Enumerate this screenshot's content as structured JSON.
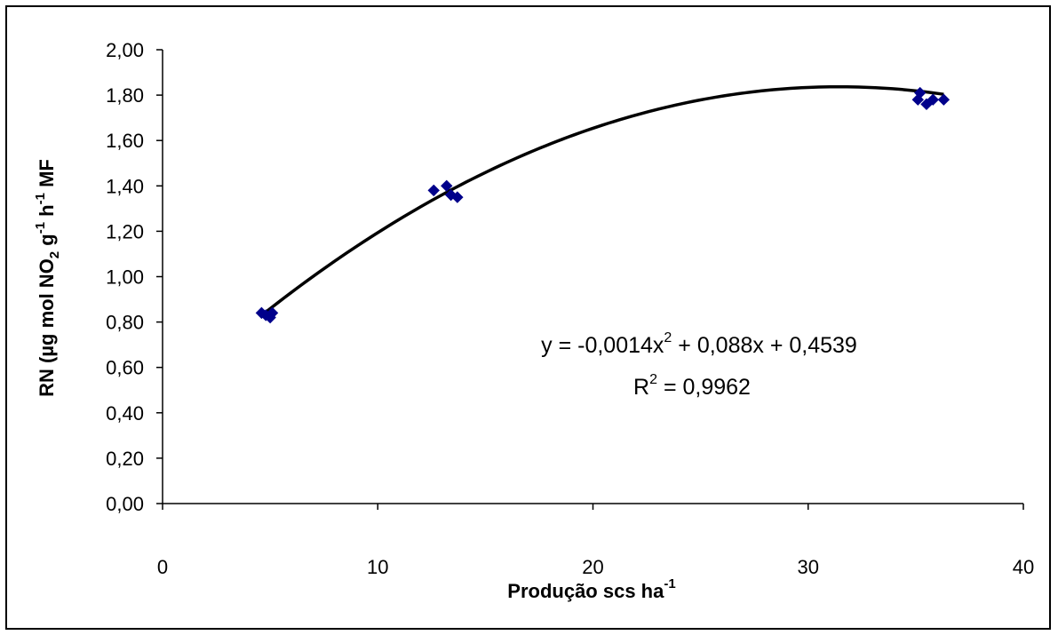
{
  "chart_data": {
    "type": "scatter",
    "title": "",
    "xlabel": "Produção scs ha",
    "xlabel_sup": "-1",
    "ylabel_parts": [
      {
        "t": "RN (µg mol NO",
        "s": "n"
      },
      {
        "t": "2",
        "s": "sub"
      },
      {
        "t": " g",
        "s": "n"
      },
      {
        "t": "-1",
        "s": "sup"
      },
      {
        "t": " h",
        "s": "n"
      },
      {
        "t": "-1",
        "s": "sup"
      },
      {
        "t": " MF",
        "s": "n"
      }
    ],
    "xlim": [
      0,
      40
    ],
    "ylim": [
      0,
      2
    ],
    "x_ticks": [
      "0",
      "10",
      "20",
      "30",
      "40"
    ],
    "y_ticks": [
      "0,00",
      "0,20",
      "0,40",
      "0,60",
      "0,80",
      "1,00",
      "1,20",
      "1,40",
      "1,60",
      "1,80",
      "2,00"
    ],
    "grid": false,
    "legend": "none",
    "marker_color": "#00008B",
    "line_color": "#000000",
    "series": [
      {
        "marker": "diamond",
        "points": [
          [
            4.6,
            0.84
          ],
          [
            4.8,
            0.83
          ],
          [
            5.0,
            0.82
          ],
          [
            5.1,
            0.84
          ],
          [
            12.6,
            1.38
          ],
          [
            13.2,
            1.4
          ],
          [
            13.4,
            1.36
          ],
          [
            13.7,
            1.35
          ],
          [
            35.1,
            1.78
          ],
          [
            35.2,
            1.81
          ],
          [
            35.5,
            1.76
          ],
          [
            35.8,
            1.78
          ],
          [
            36.3,
            1.78
          ]
        ]
      }
    ],
    "trendline": {
      "type": "polynomial",
      "coefficients": {
        "a": -0.0014,
        "b": 0.088,
        "c": 0.4539
      },
      "x_range": [
        4.6,
        36.3
      ]
    },
    "annotations": {
      "equation_base": "y = -0,0014x",
      "equation_sup": "2",
      "equation_rest": " + 0,088x + 0,4539",
      "r2_base": "R",
      "r2_sup": "2",
      "r2_rest": " = 0,9962"
    }
  }
}
